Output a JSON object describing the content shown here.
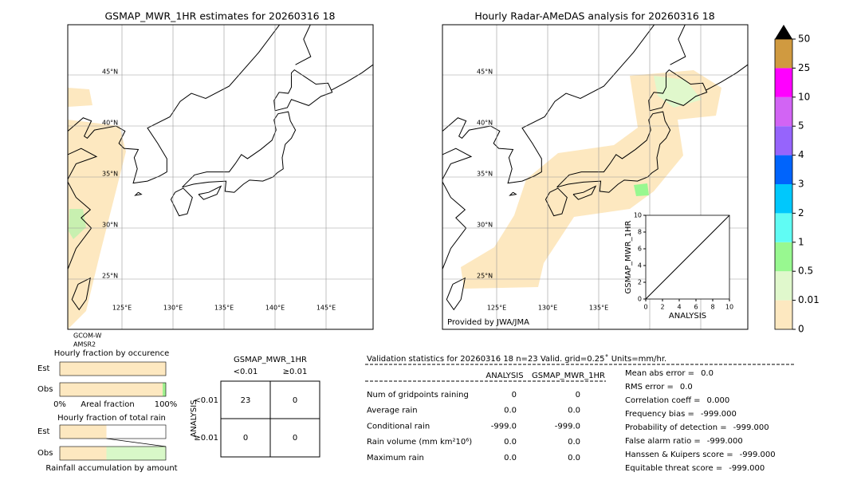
{
  "maps": [
    {
      "title": "GSMAP_MWR_1HR estimates for 20260316 18",
      "lat_labels": [
        "45°N",
        "40°N",
        "35°N",
        "30°N",
        "25°N"
      ],
      "lon_labels": [
        "125°E",
        "130°E",
        "135°E",
        "140°E",
        "145°E"
      ],
      "satellite": [
        "GCOM-W",
        "AMSR2"
      ]
    },
    {
      "title": "Hourly Radar-AMeDAS analysis for 20260316 18",
      "lat_labels": [
        "45°N",
        "40°N",
        "35°N",
        "30°N",
        "25°N"
      ],
      "lon_labels": [
        "125°E",
        "130°E",
        "135°E"
      ],
      "credit": "Provided by JWA/JMA"
    }
  ],
  "colorbar": {
    "levels": [
      0,
      0.01,
      0.5,
      1,
      2,
      3,
      4,
      5,
      10,
      25,
      50
    ],
    "colors": [
      "#fde8c0",
      "#e0f8cc",
      "#98f890",
      "#60fcf4",
      "#00c8fc",
      "#0064fc",
      "#9664fc",
      "#d264f4",
      "#ff00ff",
      "#d09a40"
    ]
  },
  "chart_data": [
    {
      "type": "barh",
      "title": "Hourly fraction by occurence",
      "categories": [
        "Est",
        "Obs"
      ],
      "series": [
        {
          "color": "#fde8c0",
          "values": [
            100,
            97
          ]
        },
        {
          "color": "#a0f090",
          "values": [
            0,
            3
          ]
        }
      ],
      "xlim": [
        0,
        100
      ],
      "xticks": [
        {
          "value": 0,
          "label": "0%"
        },
        {
          "value": 100,
          "label": "100%"
        }
      ],
      "xlabel": "Areal fraction"
    },
    {
      "type": "barh",
      "title": "Hourly fraction of total rain",
      "categories": [
        "Est",
        "Obs"
      ],
      "series": [
        {
          "color": "#fde8c0",
          "values": [
            44,
            44
          ]
        },
        {
          "color": "#d8f8c8",
          "values": [
            0,
            56
          ]
        }
      ],
      "xlim": [
        0,
        100
      ],
      "xlabel": "Rainfall accumulation by amount"
    },
    {
      "type": "scatter",
      "xlabel": "ANALYSIS",
      "ylabel": "GSMAP_MWR_1HR",
      "xlim": [
        0,
        10
      ],
      "ylim": [
        0,
        10
      ],
      "xticks": [
        0,
        2,
        4,
        6,
        8,
        10
      ],
      "yticks": [
        0,
        2,
        4,
        6,
        8,
        10
      ]
    }
  ],
  "contingency": {
    "title": "GSMAP_MWR_1HR",
    "columns": [
      "<0.01",
      "≥0.01"
    ],
    "row_title": "ANALYSIS",
    "rows": [
      "<0.01",
      "≥0.01"
    ],
    "cells": [
      [
        23,
        0
      ],
      [
        0,
        0
      ]
    ]
  },
  "validation": {
    "header": "Validation statistics for 20260316 18  n=23 Valid. grid=0.25˚ Units=mm/hr.",
    "columns": [
      "ANALYSIS",
      "GSMAP_MWR_1HR"
    ],
    "rows": [
      [
        "Num of gridpoints raining",
        "0",
        "0"
      ],
      [
        "Average rain",
        "0.0",
        "0.0"
      ],
      [
        "Conditional rain",
        "-999.0",
        "-999.0"
      ],
      [
        "Rain volume (mm km²10⁶)",
        "0.0",
        "0.0"
      ],
      [
        "Maximum rain",
        "0.0",
        "0.0"
      ]
    ],
    "scores": [
      [
        "Mean abs error =",
        "0.0"
      ],
      [
        "RMS error =",
        "0.0"
      ],
      [
        "Correlation coeff =",
        "0.000"
      ],
      [
        "Frequency bias =",
        "-999.000"
      ],
      [
        "Probability of detection =",
        "-999.000"
      ],
      [
        "False alarm ratio =",
        "-999.000"
      ],
      [
        "Hanssen & Kuipers score =",
        "-999.000"
      ],
      [
        "Equitable threat score =",
        "-999.000"
      ]
    ]
  }
}
